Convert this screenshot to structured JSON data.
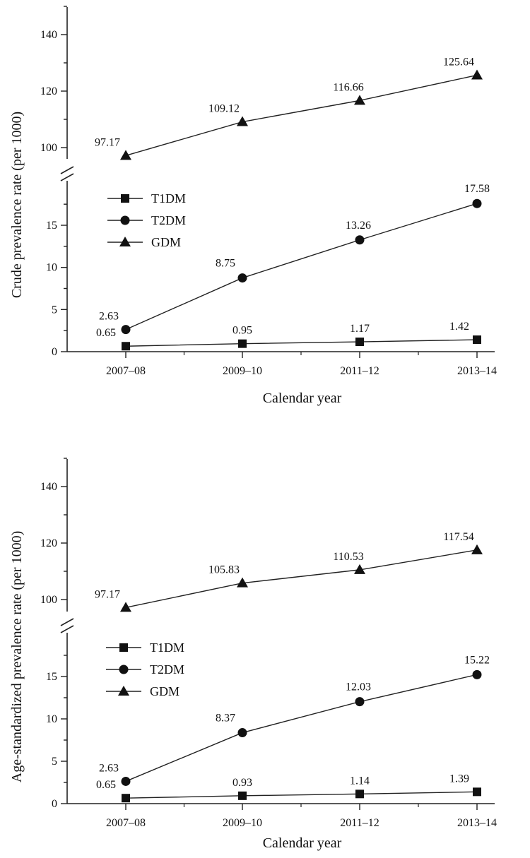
{
  "chart_data": [
    {
      "type": "line",
      "categories": [
        "2007–08",
        "2009–10",
        "2011–12",
        "2013–14"
      ],
      "xlabel": "Calendar year",
      "ylabel": "Crude prevalence rate (per 1000)",
      "axis_break": true,
      "ylim_lower": [
        0,
        19
      ],
      "ylim_upper": [
        90,
        150
      ],
      "yticks_lower": [
        "0",
        "5",
        "10",
        "15"
      ],
      "yticks_upper": [
        "100",
        "120",
        "140"
      ],
      "legend_position": "upper-left of lower panel",
      "series": [
        {
          "name": "T1DM",
          "marker": "square",
          "values": [
            0.65,
            0.95,
            1.17,
            1.42
          ],
          "labels": [
            "0.65",
            "0.95",
            "1.17",
            "1.42"
          ]
        },
        {
          "name": "T2DM",
          "marker": "circle",
          "values": [
            2.63,
            8.75,
            13.26,
            17.58
          ],
          "labels": [
            "2.63",
            "8.75",
            "13.26",
            "17.58"
          ]
        },
        {
          "name": "GDM",
          "marker": "triangle",
          "values": [
            97.17,
            109.12,
            116.66,
            125.64
          ],
          "labels": [
            "97.17",
            "109.12",
            "116.66",
            "125.64"
          ]
        }
      ]
    },
    {
      "type": "line",
      "categories": [
        "2007–08",
        "2009–10",
        "2011–12",
        "2013–14"
      ],
      "xlabel": "Calendar year",
      "ylabel": "Age-standardized prevalence rate (per 1000)",
      "axis_break": true,
      "ylim_lower": [
        0,
        19
      ],
      "ylim_upper": [
        90,
        150
      ],
      "yticks_lower": [
        "0",
        "5",
        "10",
        "15"
      ],
      "yticks_upper": [
        "100",
        "120",
        "140"
      ],
      "legend_position": "upper-left of lower panel",
      "series": [
        {
          "name": "T1DM",
          "marker": "square",
          "values": [
            0.65,
            0.93,
            1.14,
            1.39
          ],
          "labels": [
            "0.65",
            "0.93",
            "1.14",
            "1.39"
          ]
        },
        {
          "name": "T2DM",
          "marker": "circle",
          "values": [
            2.63,
            8.37,
            12.03,
            15.22
          ],
          "labels": [
            "2.63",
            "8.37",
            "12.03",
            "15.22"
          ]
        },
        {
          "name": "GDM",
          "marker": "triangle",
          "values": [
            97.17,
            105.83,
            110.53,
            117.54
          ],
          "labels": [
            "97.17",
            "105.83",
            "110.53",
            "117.54"
          ]
        }
      ]
    }
  ]
}
